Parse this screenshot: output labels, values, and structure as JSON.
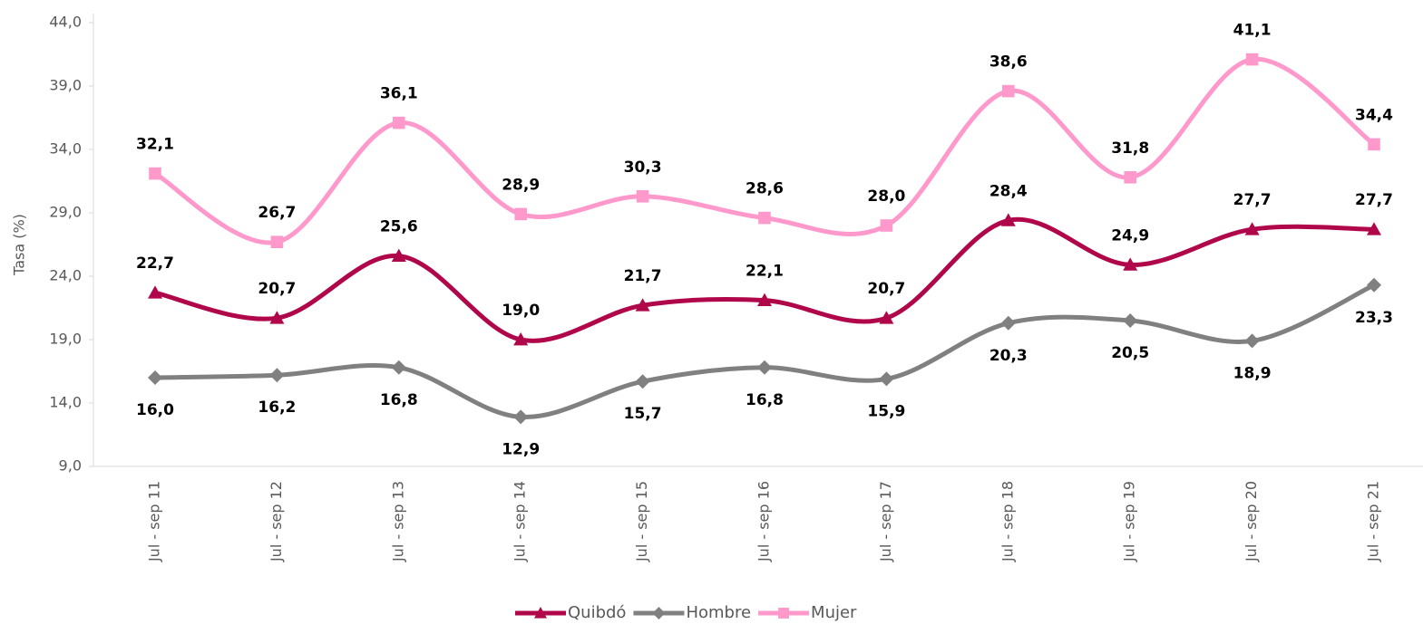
{
  "chart_data": {
    "type": "line",
    "y_label": "Tasa (%)",
    "categories": [
      "Jul - sep 11",
      "Jul - sep 12",
      "Jul - sep 13",
      "Jul - sep 14",
      "Jul - sep 15",
      "Jul - sep 16",
      "Jul - sep 17",
      "Jul - sep 18",
      "Jul - sep 19",
      "Jul - sep 20",
      "Jul - sep 21"
    ],
    "series": [
      {
        "name": "Quibdó",
        "color": "#b0064a",
        "marker": "triangle",
        "label_side": "above",
        "values": [
          22.7,
          20.7,
          25.6,
          19.0,
          21.7,
          22.1,
          20.7,
          28.4,
          24.9,
          27.7,
          27.7
        ],
        "value_labels": [
          "22,7",
          "20,7",
          "25,6",
          "19,0",
          "21,7",
          "22,1",
          "20,7",
          "28,4",
          "24,9",
          "27,7",
          "27,7"
        ]
      },
      {
        "name": "Hombre",
        "color": "#808080",
        "marker": "diamond",
        "label_side": "below",
        "values": [
          16.0,
          16.2,
          16.8,
          12.9,
          15.7,
          16.8,
          15.9,
          20.3,
          20.5,
          18.9,
          23.3
        ],
        "value_labels": [
          "16,0",
          "16,2",
          "16,8",
          "12,9",
          "15,7",
          "16,8",
          "15,9",
          "20,3",
          "20,5",
          "18,9",
          "23,3"
        ]
      },
      {
        "name": "Mujer",
        "color": "#ff99cc",
        "marker": "square",
        "label_side": "above",
        "values": [
          32.1,
          26.7,
          36.1,
          28.9,
          30.3,
          28.6,
          28.0,
          38.6,
          31.8,
          41.1,
          34.4
        ],
        "value_labels": [
          "32,1",
          "26,7",
          "36,1",
          "28,9",
          "30,3",
          "28,6",
          "28,0",
          "38,6",
          "31,8",
          "41,1",
          "34,4"
        ]
      }
    ],
    "ylim": [
      9,
      44
    ],
    "yticks": [
      {
        "value": 9,
        "label": "9,0"
      },
      {
        "value": 14,
        "label": "14,0"
      },
      {
        "value": 19,
        "label": "19,0"
      },
      {
        "value": 24,
        "label": "24,0"
      },
      {
        "value": 29,
        "label": "29,0"
      },
      {
        "value": 34,
        "label": "34,0"
      },
      {
        "value": 39,
        "label": "39,0"
      },
      {
        "value": 44,
        "label": "44,0"
      }
    ],
    "grid": false,
    "legend": "bottom"
  }
}
